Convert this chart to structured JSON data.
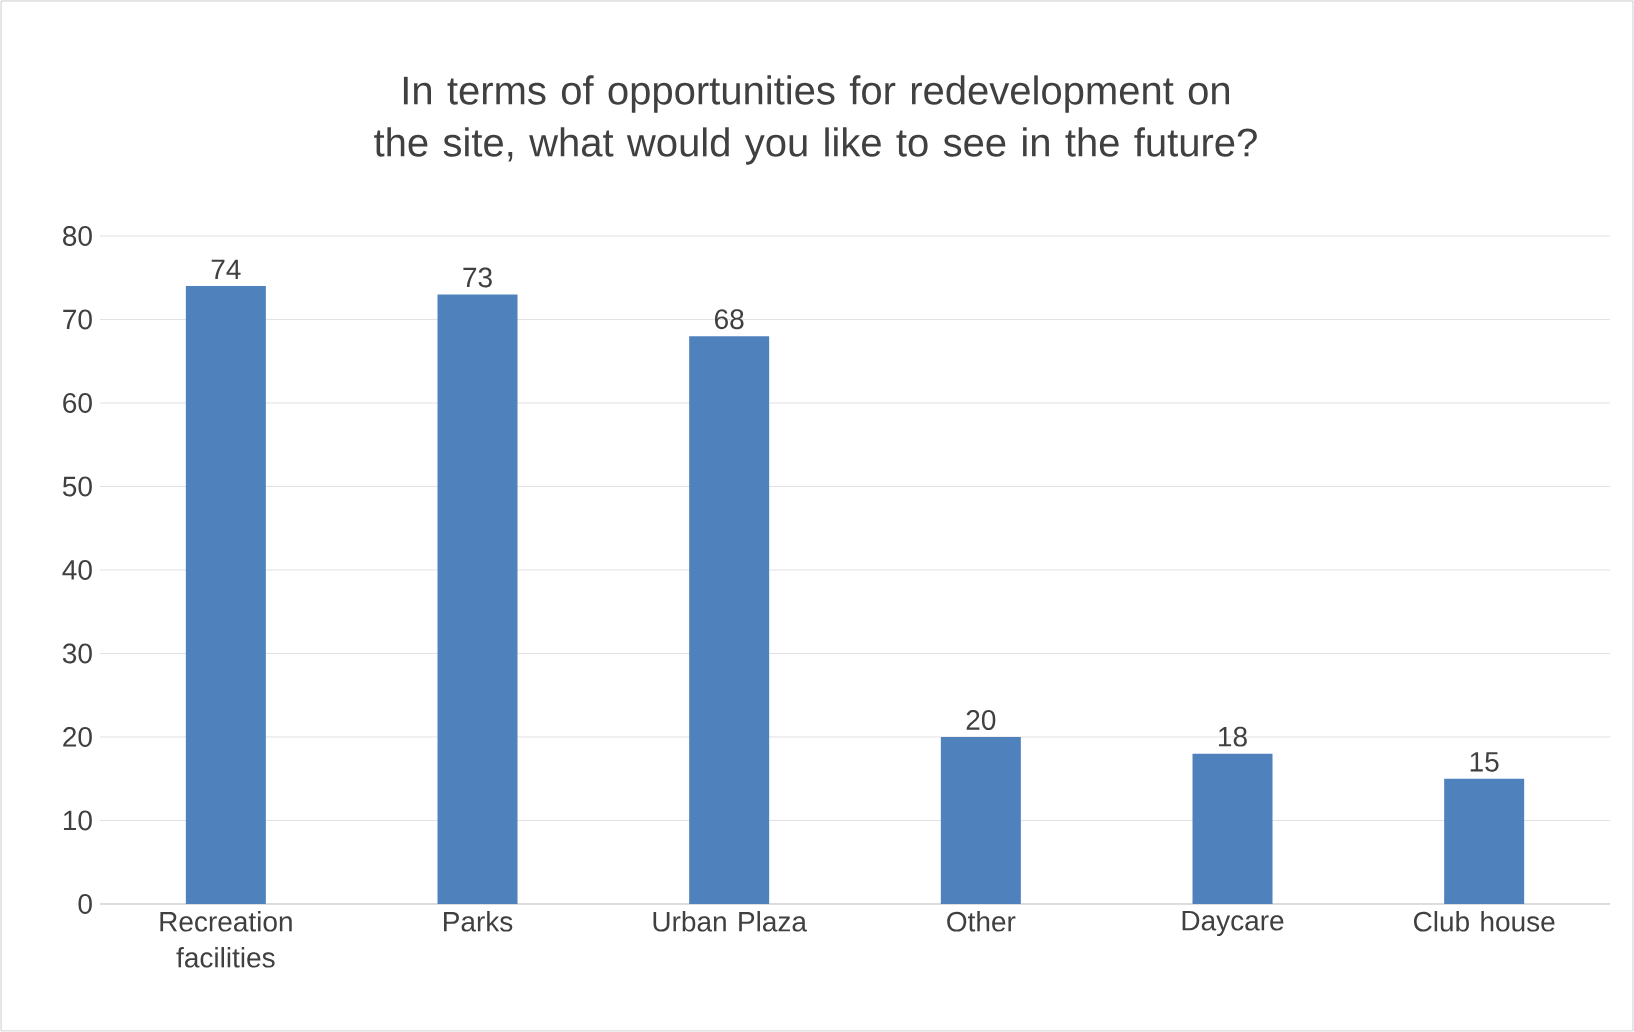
{
  "chart_data": {
    "type": "bar",
    "title": "In terms of opportunities for redevelopment on the site, what would you like to see in the future?",
    "categories": [
      "Recreation facilities",
      "Parks",
      "Urban Plaza",
      "Other",
      "Daycare",
      "Club house"
    ],
    "values": [
      74,
      73,
      68,
      20,
      18,
      15
    ],
    "color": "#4f81bd",
    "ylim": [
      0,
      80
    ],
    "yticks": [
      0,
      10,
      20,
      30,
      40,
      50,
      60,
      70,
      80
    ],
    "grid": "y",
    "data_labels": true
  }
}
